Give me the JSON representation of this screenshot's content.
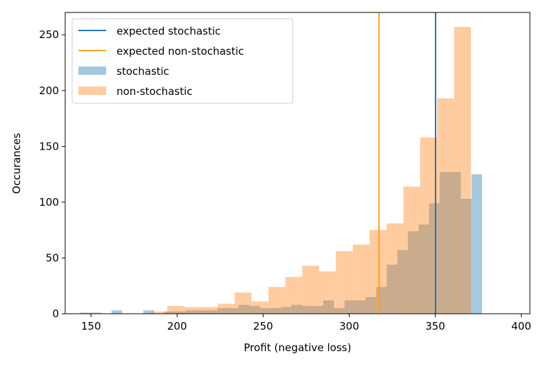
{
  "chart_data": {
    "type": "histogram",
    "title": "",
    "xlabel": "Profit (negative loss)",
    "ylabel": "Occurances",
    "xlim": [
      135,
      405
    ],
    "ylim": [
      0,
      270
    ],
    "xticks": [
      150,
      200,
      250,
      300,
      350,
      400
    ],
    "yticks": [
      0,
      50,
      100,
      150,
      200,
      250
    ],
    "legend_position": "top-left",
    "expected_lines": [
      {
        "name": "expected stochastic",
        "x": 350.2,
        "color": "#1f77b4"
      },
      {
        "name": "expected non-stochastic",
        "x": 317.3,
        "color": "#ff9f1c"
      }
    ],
    "series": [
      {
        "name": "stochastic",
        "color": "#1f77b4",
        "opacity": 0.4,
        "bin_start": 143.5,
        "bin_width": 6.15,
        "values": [
          1,
          1,
          0,
          3,
          0,
          0,
          3,
          0,
          2,
          2,
          3,
          3,
          3,
          5,
          5,
          8,
          7,
          5,
          5,
          6,
          8,
          7,
          7,
          12,
          5,
          12,
          12,
          15,
          24,
          44,
          57,
          74,
          80,
          99,
          127,
          127,
          103,
          125
        ]
      },
      {
        "name": "non-stochastic",
        "color": "#ff7f0e",
        "opacity": 0.4,
        "bin_start": 184.5,
        "bin_width": 9.8,
        "values": [
          2,
          7,
          6,
          6,
          9,
          19,
          11,
          24,
          33,
          43,
          38,
          56,
          62,
          75,
          81,
          114,
          158,
          193,
          257
        ]
      }
    ]
  }
}
